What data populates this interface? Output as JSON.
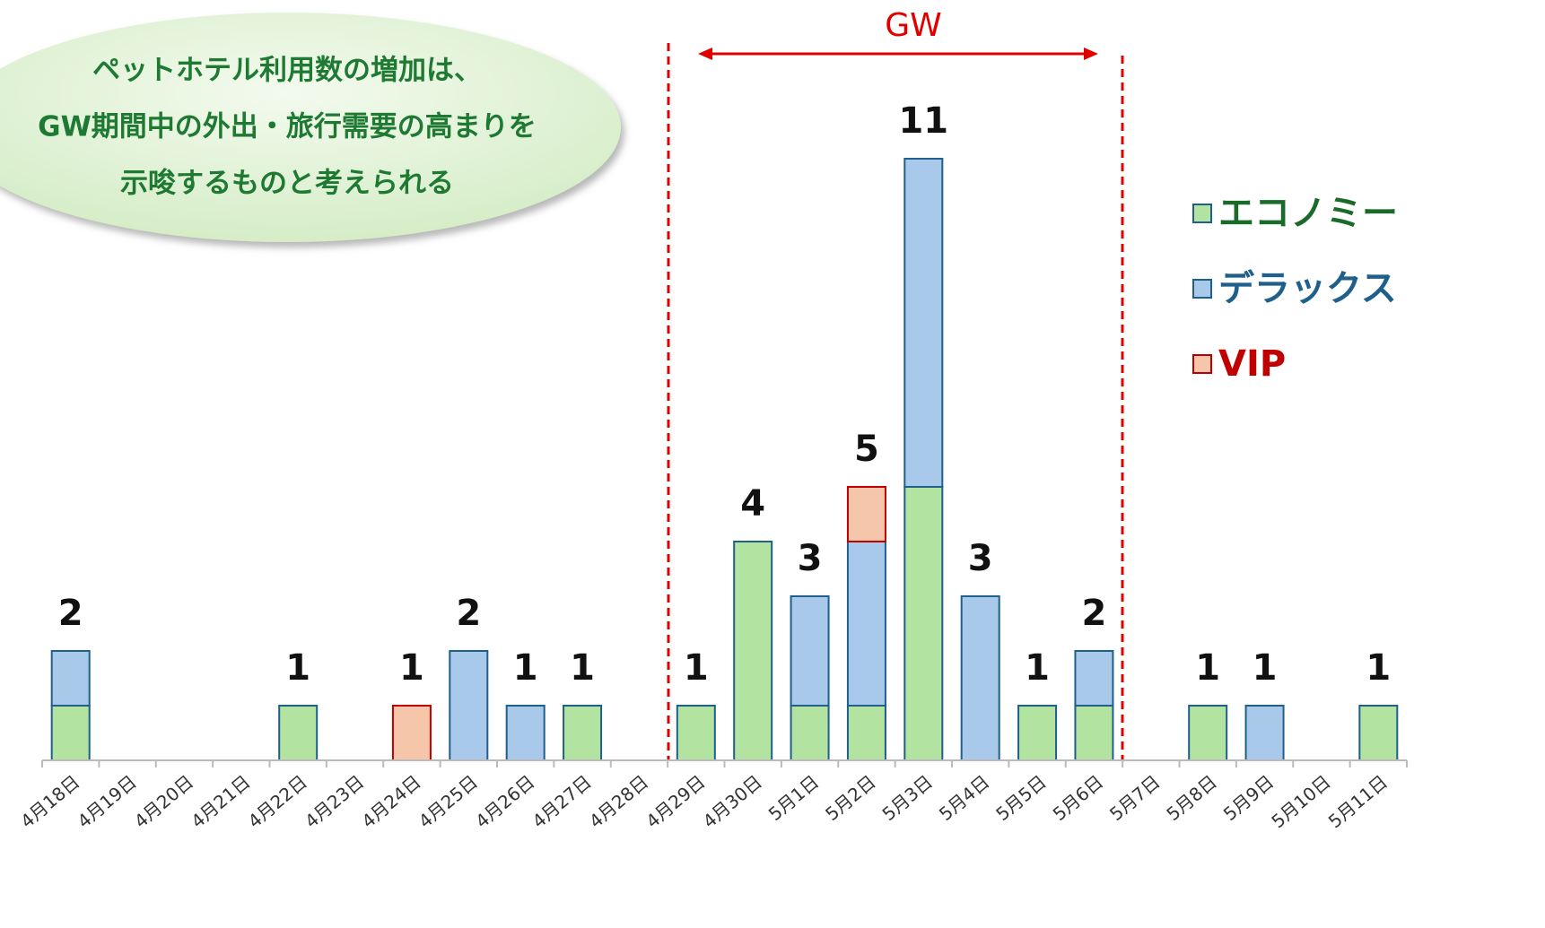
{
  "chart_data": {
    "type": "stacked_bar",
    "categories": [
      "4月18日",
      "4月19日",
      "4月20日",
      "4月21日",
      "4月22日",
      "4月23日",
      "4月24日",
      "4月25日",
      "4月26日",
      "4月27日",
      "4月28日",
      "4月29日",
      "4月30日",
      "5月1日",
      "5月2日",
      "5月3日",
      "5月4日",
      "5月5日",
      "5月6日",
      "5月7日",
      "5月8日",
      "5月9日",
      "5月10日",
      "5月11日"
    ],
    "series": [
      {
        "name": "エコノミー",
        "color": "#b3e3a0",
        "edge_color": "#1f5f8b",
        "text_color": "#1a6b2a",
        "values": [
          1,
          0,
          0,
          0,
          1,
          0,
          0,
          0,
          0,
          1,
          0,
          1,
          4,
          1,
          1,
          5,
          0,
          1,
          1,
          0,
          1,
          0,
          0,
          1
        ]
      },
      {
        "name": "デラックス",
        "color": "#a9c9ea",
        "edge_color": "#1f5f8b",
        "text_color": "#1f5f8b",
        "values": [
          1,
          0,
          0,
          0,
          0,
          0,
          0,
          2,
          1,
          0,
          0,
          0,
          0,
          2,
          3,
          6,
          3,
          0,
          1,
          0,
          0,
          1,
          0,
          0
        ]
      },
      {
        "name": "VIP",
        "color": "#f5c6aa",
        "edge_color": "#c00000",
        "text_color": "#c00000",
        "values": [
          0,
          0,
          0,
          0,
          0,
          0,
          1,
          0,
          0,
          0,
          0,
          0,
          0,
          0,
          1,
          0,
          0,
          0,
          0,
          0,
          0,
          0,
          0,
          0
        ]
      }
    ],
    "totals": [
      2,
      null,
      null,
      null,
      1,
      null,
      1,
      2,
      1,
      1,
      null,
      1,
      4,
      3,
      5,
      11,
      3,
      1,
      2,
      null,
      1,
      1,
      null,
      1
    ],
    "ylim": [
      0,
      13
    ],
    "legend": "right",
    "annotations": {
      "period": "GW",
      "callout": [
        "ペットホテル利用数の増加は、",
        "GW期間中の外出・旅行需要の高まりを",
        "示唆するものと考えられる"
      ]
    }
  }
}
